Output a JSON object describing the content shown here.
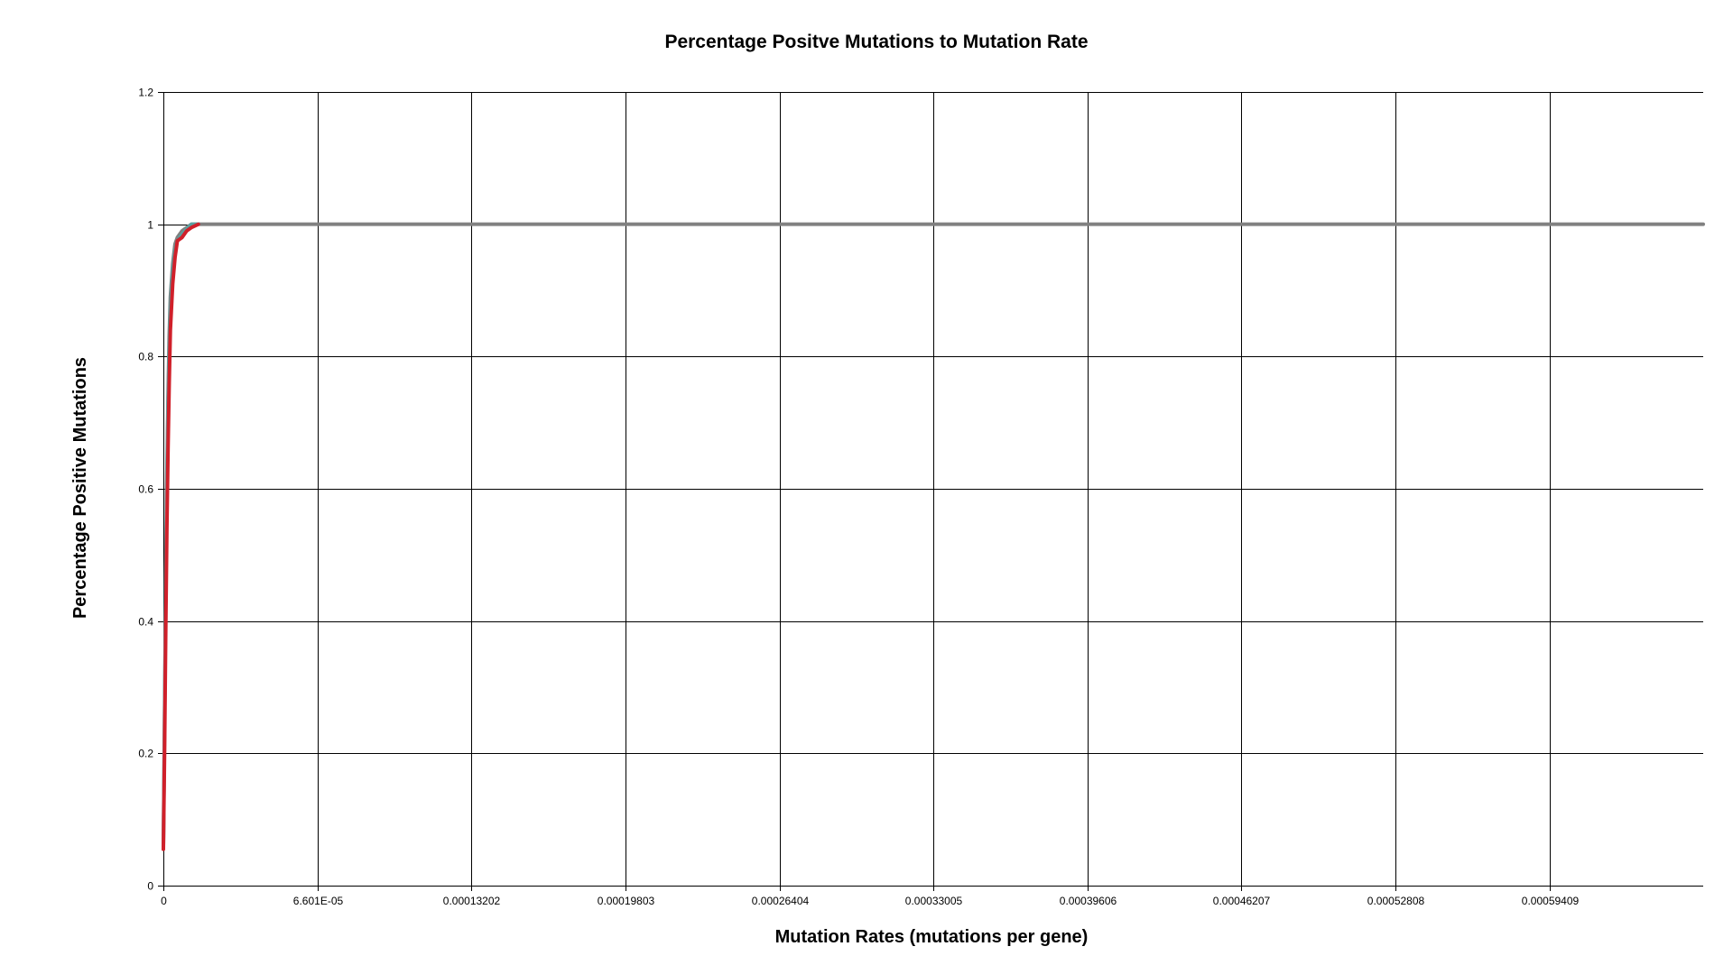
{
  "chart_data": {
    "type": "line",
    "title": "Percentage Positve Mutations to Mutation Rate",
    "xlabel": "Mutation Rates (mutations per gene)",
    "ylabel": "Percentage Positive Mutations",
    "xlim": [
      0,
      0.00066
    ],
    "ylim": [
      0,
      1.2
    ],
    "grid": true,
    "legend": "none",
    "x_ticks": [
      0,
      6.601e-05,
      0.00013202,
      0.00019803,
      0.00026404,
      0.00033005,
      0.00039606,
      0.00046207,
      0.00052808,
      0.00059409
    ],
    "x_tick_labels": [
      "0",
      "6.601E-05",
      "0.00013202",
      "0.00019803",
      "0.00026404",
      "0.00033005",
      "0.00039606",
      "0.00046207",
      "0.00052808",
      "0.00059409"
    ],
    "y_ticks": [
      0,
      0.2,
      0.4,
      0.6,
      0.8,
      1,
      1.2
    ],
    "y_tick_labels": [
      "0",
      "0.2",
      "0.4",
      "0.6",
      "0.8",
      "1",
      "1.2"
    ],
    "series": [
      {
        "color": "#808080",
        "x": [
          0,
          5e-07,
          1e-06,
          1.5e-06,
          2e-06,
          2.5e-06,
          3e-06,
          4e-06,
          5e-06,
          6e-06,
          8e-06,
          1e-05,
          1.2e-05,
          1.5e-05,
          2e-05,
          0.00066
        ],
        "y": [
          0.06,
          0.25,
          0.45,
          0.62,
          0.74,
          0.83,
          0.89,
          0.94,
          0.97,
          0.98,
          0.99,
          0.995,
          1.0,
          1.0,
          1.0,
          1.0
        ]
      },
      {
        "color": "#5aa0a0",
        "x": [
          0,
          5e-07,
          1e-06,
          1.5e-06,
          2e-06,
          2.5e-06,
          3e-06,
          4e-06,
          5e-06,
          6e-06,
          8e-06,
          1e-05,
          1.2e-05,
          1.5e-05
        ],
        "y": [
          0.06,
          0.24,
          0.44,
          0.6,
          0.72,
          0.81,
          0.87,
          0.93,
          0.96,
          0.975,
          0.985,
          0.993,
          1.0,
          1.0
        ]
      },
      {
        "color": "#d0202a",
        "x": [
          0,
          5e-07,
          1e-06,
          1.5e-06,
          2e-06,
          2.5e-06,
          3e-06,
          4e-06,
          5e-06,
          6e-06,
          8e-06,
          1e-05,
          1.2e-05,
          1.5e-05
        ],
        "y": [
          0.055,
          0.2,
          0.38,
          0.54,
          0.66,
          0.76,
          0.84,
          0.91,
          0.95,
          0.975,
          0.98,
          0.99,
          0.995,
          1.0
        ]
      }
    ]
  }
}
